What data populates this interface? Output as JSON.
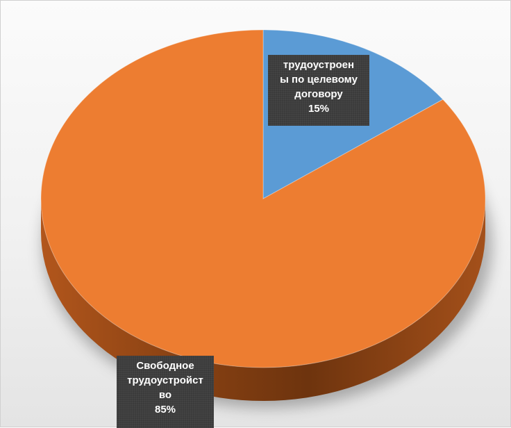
{
  "colors": {
    "background": "#f3f3f3",
    "slice_blue": "#5b9bd5",
    "slice_orange": "#ed7d31",
    "label_bg": "#3b3b3b"
  },
  "chart_data": {
    "type": "pie",
    "title": "",
    "style": "3d-tilted",
    "slices": [
      {
        "label_lines": [
          "трудоустроен",
          "ы по целевому",
          "договору"
        ],
        "label": "трудоустроены по целевому договору",
        "value": 15,
        "value_label": "15%",
        "color": "#5b9bd5"
      },
      {
        "label_lines": [
          "Свободное",
          "трудоустройст",
          "во"
        ],
        "label": "Свободное трудоустройство",
        "value": 85,
        "value_label": "85%",
        "color": "#ed7d31"
      }
    ]
  }
}
